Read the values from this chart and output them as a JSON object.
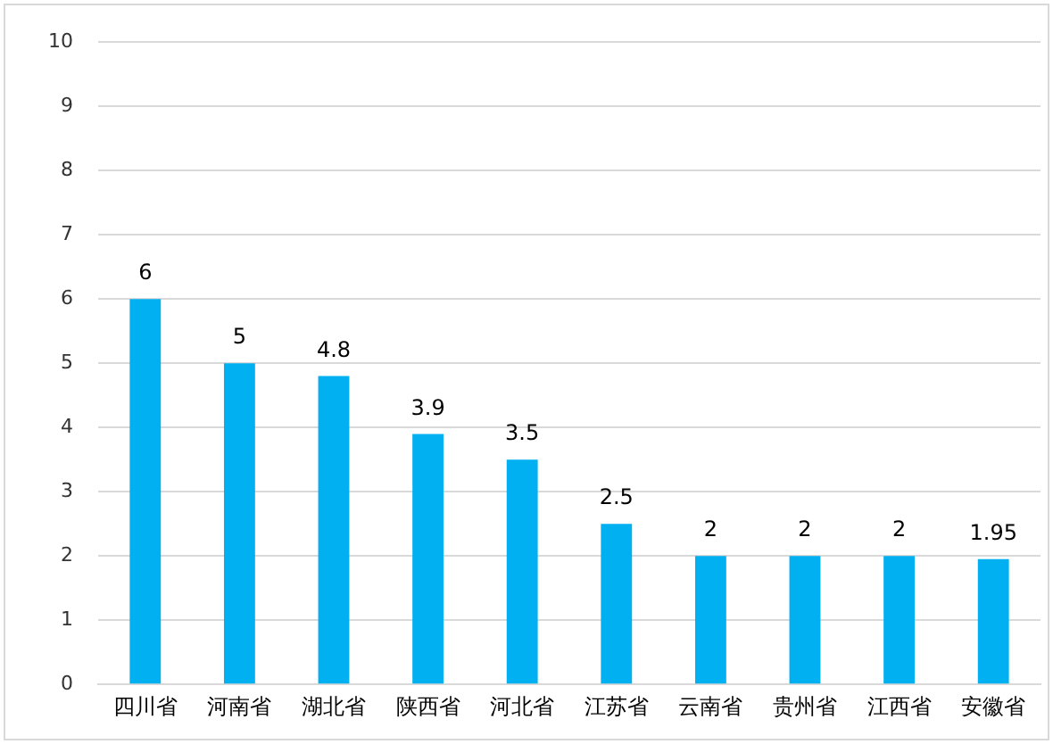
{
  "chart_data": {
    "type": "bar",
    "categories": [
      "四川省",
      "河南省",
      "湖北省",
      "陕西省",
      "河北省",
      "江苏省",
      "云南省",
      "贵州省",
      "江西省",
      "安徽省"
    ],
    "values": [
      6,
      5,
      4.8,
      3.9,
      3.5,
      2.5,
      2,
      2,
      2,
      1.95
    ],
    "color": "#00b0f0",
    "ylim": [
      0,
      10
    ],
    "yticks": [
      0,
      1,
      2,
      3,
      4,
      5,
      6,
      7,
      8,
      9,
      10
    ],
    "grid": "y",
    "data_labels": true,
    "legend": false
  }
}
